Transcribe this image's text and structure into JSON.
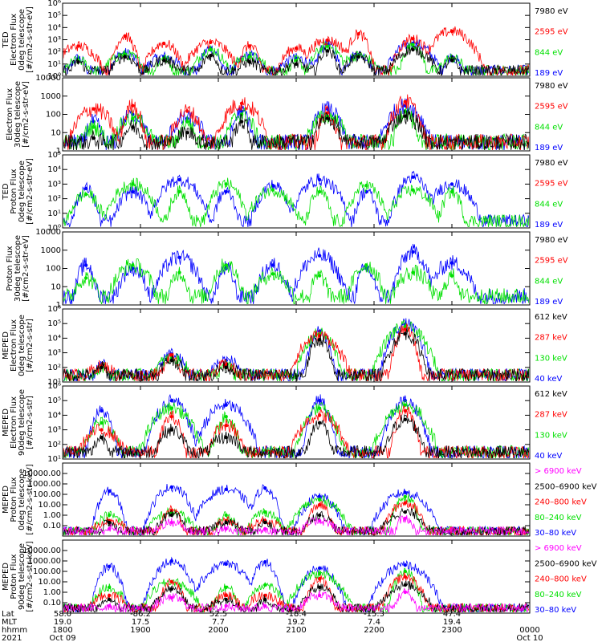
{
  "palette": {
    "black": "#000000",
    "red": "#ff0000",
    "green": "#00e000",
    "blue": "#0000ff",
    "magenta": "#ff00ff"
  },
  "chart_data": [
    {
      "type": "line",
      "panel": "TED electron flux 0deg",
      "ylabel_lines": [
        "TED",
        "Electron Flux",
        "0deg telescope",
        "[#/cm2-s-str-eV]"
      ],
      "yscale": "log",
      "ylim": [
        1,
        1000000
      ],
      "yticks": [
        "10⁰",
        "10¹",
        "10²",
        "10³",
        "10⁴",
        "10⁵",
        "10⁶"
      ],
      "legend": [
        {
          "label": "7980 eV",
          "color": "black"
        },
        {
          "label": "2595 eV",
          "color": "red"
        },
        {
          "label": "844 eV",
          "color": "green"
        },
        {
          "label": "189 eV",
          "color": "blue"
        }
      ],
      "series": [
        {
          "name": "189 eV",
          "color": "blue",
          "x": [
            0.2,
            0.8,
            1.3,
            1.9,
            2.4,
            3.0,
            3.4,
            3.8,
            4.5,
            5.0
          ],
          "y": [
            30,
            80,
            40,
            200,
            50,
            30,
            400,
            60,
            500,
            40
          ]
        },
        {
          "name": "844 eV",
          "color": "green",
          "x": [
            0.2,
            0.8,
            1.3,
            1.9,
            2.4,
            3.0,
            3.4,
            3.8,
            4.5,
            5.0
          ],
          "y": [
            20,
            60,
            30,
            150,
            40,
            20,
            300,
            50,
            400,
            30
          ]
        },
        {
          "name": "2595 eV",
          "color": "red",
          "x": [
            0.2,
            0.8,
            1.3,
            1.9,
            2.4,
            3.0,
            3.4,
            3.8,
            4.5,
            5.0
          ],
          "y": [
            300,
            2000,
            500,
            600,
            300,
            200,
            900,
            3000,
            1200,
            5000
          ]
        },
        {
          "name": "7980 eV",
          "color": "black",
          "x": [
            0.2,
            0.8,
            1.3,
            1.9,
            2.4,
            3.0,
            3.4,
            3.8,
            4.5,
            5.0
          ],
          "y": [
            15,
            40,
            20,
            50,
            15,
            10,
            120,
            40,
            150,
            20
          ]
        }
      ]
    },
    {
      "type": "line",
      "panel": "TED electron flux 30deg",
      "ylabel_lines": [
        "Electron Flux",
        "30deg telescope",
        "[#/cm2-s-str-eV]"
      ],
      "yscale": "log",
      "ylim": [
        1,
        10000
      ],
      "yticks": [
        "1",
        "10",
        "100",
        "1000",
        "10000"
      ],
      "legend": [
        {
          "label": "7980 eV",
          "color": "black"
        },
        {
          "label": "2595 eV",
          "color": "red"
        },
        {
          "label": "844 eV",
          "color": "green"
        },
        {
          "label": "189 eV",
          "color": "blue"
        }
      ],
      "series": [
        {
          "name": "189 eV",
          "color": "blue",
          "x": [
            0.4,
            0.9,
            1.6,
            2.3,
            3.4,
            4.4
          ],
          "y": [
            40,
            100,
            60,
            150,
            200,
            300
          ]
        },
        {
          "name": "844 eV",
          "color": "green",
          "x": [
            0.4,
            0.9,
            1.6,
            2.3,
            3.4,
            4.4
          ],
          "y": [
            20,
            60,
            40,
            100,
            80,
            150
          ]
        },
        {
          "name": "2595 eV",
          "color": "red",
          "x": [
            0.4,
            0.9,
            1.6,
            2.3,
            3.4,
            4.4
          ],
          "y": [
            200,
            300,
            150,
            400,
            120,
            500
          ]
        },
        {
          "name": "7980 eV",
          "color": "black",
          "x": [
            0.4,
            0.9,
            1.6,
            2.3,
            3.4,
            4.4
          ],
          "y": [
            5,
            20,
            10,
            40,
            60,
            80
          ]
        }
      ]
    },
    {
      "type": "line",
      "panel": "TED proton flux 0deg",
      "ylabel_lines": [
        "TED",
        "Proton Flux",
        "0deg telescope",
        "[#/cm2-s-str-eV]"
      ],
      "yscale": "log",
      "ylim": [
        1,
        100000
      ],
      "yticks": [
        "10⁰",
        "10¹",
        "10²",
        "10³",
        "10⁴",
        "10⁵"
      ],
      "legend": [
        {
          "label": "7980 eV",
          "color": "black"
        },
        {
          "label": "2595 eV",
          "color": "red"
        },
        {
          "label": "844 eV",
          "color": "green"
        },
        {
          "label": "189 eV",
          "color": "blue"
        }
      ],
      "series": [
        {
          "name": "189 eV",
          "color": "blue",
          "x": [
            0.3,
            0.9,
            1.5,
            2.1,
            2.7,
            3.3,
            3.9,
            4.5,
            5.0
          ],
          "y": [
            500,
            300,
            2000,
            300,
            800,
            2000,
            300,
            3000,
            1000
          ]
        },
        {
          "name": "844 eV",
          "color": "green",
          "x": [
            0.3,
            0.9,
            1.5,
            2.1,
            2.7,
            3.3,
            3.9,
            4.5,
            5.0
          ],
          "y": [
            200,
            1000,
            300,
            1000,
            400,
            300,
            800,
            400,
            300
          ]
        }
      ]
    },
    {
      "type": "line",
      "panel": "TED proton flux 30deg",
      "ylabel_lines": [
        "Proton Flux",
        "30deg telescope",
        "[#/cm2-s-str-eV]"
      ],
      "yscale": "log",
      "ylim": [
        1,
        10000
      ],
      "yticks": [
        "1",
        "10",
        "100",
        "1000",
        "10000"
      ],
      "legend": [
        {
          "label": "7980 eV",
          "color": "black"
        },
        {
          "label": "2595 eV",
          "color": "red"
        },
        {
          "label": "844 eV",
          "color": "green"
        },
        {
          "label": "189 eV",
          "color": "blue"
        }
      ],
      "series": [
        {
          "name": "189 eV",
          "color": "blue",
          "x": [
            0.3,
            0.9,
            1.5,
            2.1,
            2.7,
            3.3,
            3.9,
            4.5,
            5.0
          ],
          "y": [
            150,
            100,
            400,
            100,
            150,
            500,
            100,
            800,
            200
          ]
        },
        {
          "name": "844 eV",
          "color": "green",
          "x": [
            0.3,
            0.9,
            1.5,
            2.1,
            2.7,
            3.3,
            3.9,
            4.5,
            5.0
          ],
          "y": [
            30,
            150,
            60,
            150,
            50,
            40,
            150,
            60,
            40
          ]
        }
      ]
    },
    {
      "type": "line",
      "panel": "MEPED electron flux 0deg",
      "ylabel_lines": [
        "MEPED",
        "Electron Flux",
        "0deg telescope",
        "[#/cm2-s-str]"
      ],
      "yscale": "log",
      "ylim": [
        10,
        1000000
      ],
      "yticks": [
        "10¹",
        "10²",
        "10³",
        "10⁴",
        "10⁵",
        "10⁶"
      ],
      "legend": [
        {
          "label": "612 keV",
          "color": "black"
        },
        {
          "label": "287 keV",
          "color": "red"
        },
        {
          "label": "130 keV",
          "color": "green"
        },
        {
          "label": "40 keV",
          "color": "blue"
        }
      ],
      "series": [
        {
          "name": "40 keV",
          "color": "blue",
          "x": [
            0.5,
            1.4,
            2.1,
            3.3,
            4.4
          ],
          "y": [
            150,
            800,
            300,
            30000,
            90000
          ]
        },
        {
          "name": "130 keV",
          "color": "green",
          "x": [
            0.5,
            1.4,
            2.1,
            3.3,
            4.4
          ],
          "y": [
            100,
            400,
            150,
            20000,
            60000
          ]
        },
        {
          "name": "287 keV",
          "color": "red",
          "x": [
            0.5,
            1.4,
            2.1,
            3.3,
            4.4
          ],
          "y": [
            120,
            700,
            150,
            15000,
            40000
          ]
        },
        {
          "name": "612 keV",
          "color": "black",
          "x": [
            0.5,
            1.4,
            2.1,
            3.3,
            4.4
          ],
          "y": [
            100,
            300,
            100,
            8000,
            20000
          ]
        }
      ]
    },
    {
      "type": "line",
      "panel": "MEPED electron flux 90deg",
      "ylabel_lines": [
        "MEPED",
        "Electron Flux",
        "90deg telescope",
        "[#/cm2-s-str]"
      ],
      "yscale": "log",
      "ylim": [
        10,
        1000000
      ],
      "yticks": [
        "10¹",
        "10²",
        "10³",
        "10⁴",
        "10⁵",
        "10⁶"
      ],
      "legend": [
        {
          "label": "612 keV",
          "color": "black"
        },
        {
          "label": "287 keV",
          "color": "red"
        },
        {
          "label": "130 keV",
          "color": "green"
        },
        {
          "label": "40 keV",
          "color": "blue"
        }
      ],
      "series": [
        {
          "name": "40 keV",
          "color": "blue",
          "x": [
            0.5,
            1.4,
            2.1,
            3.3,
            4.4
          ],
          "y": [
            20000,
            100000,
            50000,
            100000,
            100000
          ]
        },
        {
          "name": "130 keV",
          "color": "green",
          "x": [
            0.5,
            1.4,
            2.1,
            3.3,
            4.4
          ],
          "y": [
            3000,
            30000,
            8000,
            30000,
            50000
          ]
        },
        {
          "name": "287 keV",
          "color": "red",
          "x": [
            0.5,
            1.4,
            2.1,
            3.3,
            4.4
          ],
          "y": [
            1000,
            8000,
            2000,
            10000,
            20000
          ]
        },
        {
          "name": "612 keV",
          "color": "black",
          "x": [
            0.5,
            1.4,
            2.1,
            3.3,
            4.4
          ],
          "y": [
            300,
            1000,
            300,
            3000,
            5000
          ]
        }
      ]
    },
    {
      "type": "line",
      "panel": "MEPED proton flux 0deg",
      "ylabel_lines": [
        "MEPED",
        "Proton Flux",
        "0deg telescope",
        "[#/cm2-s-str-keV]"
      ],
      "yscale": "log",
      "ylim": [
        0.01,
        100000
      ],
      "yticks": [
        "0.10",
        "1.00",
        "10.00",
        "100.00",
        "1000.00",
        "10000.00"
      ],
      "legend": [
        {
          "label": "> 6900 keV",
          "color": "magenta"
        },
        {
          "label": "2500–6900 keV",
          "color": "black"
        },
        {
          "label": "240–800 keV",
          "color": "red"
        },
        {
          "label": "80–240 keV",
          "color": "green"
        },
        {
          "label": "30–80 keV",
          "color": "blue"
        }
      ],
      "series": [
        {
          "name": "30–80 keV",
          "color": "blue",
          "x": [
            0.6,
            1.4,
            2.1,
            2.6,
            3.3,
            4.4
          ],
          "y": [
            200,
            500,
            300,
            400,
            60,
            150
          ]
        },
        {
          "name": "80–240 keV",
          "color": "green",
          "x": [
            0.6,
            1.4,
            2.1,
            2.6,
            3.3,
            4.4
          ],
          "y": [
            1,
            2,
            1,
            2,
            30,
            60
          ]
        },
        {
          "name": "240–800 keV",
          "color": "red",
          "x": [
            0.6,
            1.4,
            2.1,
            2.6,
            3.3,
            4.4
          ],
          "y": [
            0.3,
            3,
            0.3,
            0.3,
            10,
            15
          ]
        },
        {
          "name": "2500–6900 keV",
          "color": "black",
          "x": [
            0.6,
            1.4,
            2.1,
            2.6,
            3.3,
            4.4
          ],
          "y": [
            0.2,
            1,
            0.2,
            0.2,
            1,
            2
          ]
        },
        {
          "name": "> 6900 keV",
          "color": "magenta",
          "x": [
            0.6,
            1.4,
            2.1,
            2.6,
            3.3,
            4.4
          ],
          "y": [
            0.05,
            0.2,
            0.05,
            0.05,
            0.3,
            0.5
          ]
        }
      ]
    },
    {
      "type": "line",
      "panel": "MEPED proton flux 90deg",
      "ylabel_lines": [
        "MEPED",
        "Proton Flux",
        "90deg telescope",
        "[#/cm2-s-str-keV]"
      ],
      "yscale": "log",
      "ylim": [
        0.01,
        100000
      ],
      "yticks": [
        "0.10",
        "1.00",
        "10.00",
        "100.00",
        "1000.00",
        "10000.00"
      ],
      "legend": [
        {
          "label": "> 6900 keV",
          "color": "magenta"
        },
        {
          "label": "2500–6900 keV",
          "color": "black"
        },
        {
          "label": "240–800 keV",
          "color": "red"
        },
        {
          "label": "80–240 keV",
          "color": "green"
        },
        {
          "label": "30–80 keV",
          "color": "blue"
        }
      ],
      "series": [
        {
          "name": "30–80 keV",
          "color": "blue",
          "x": [
            0.6,
            1.4,
            2.1,
            2.6,
            3.3,
            4.4
          ],
          "y": [
            300,
            1000,
            500,
            800,
            200,
            400
          ]
        },
        {
          "name": "80–240 keV",
          "color": "green",
          "x": [
            0.6,
            1.4,
            2.1,
            2.6,
            3.3,
            4.4
          ],
          "y": [
            3,
            10,
            3,
            5,
            60,
            100
          ]
        },
        {
          "name": "240–800 keV",
          "color": "red",
          "x": [
            0.6,
            1.4,
            2.1,
            2.6,
            3.3,
            4.4
          ],
          "y": [
            0.5,
            10,
            0.5,
            0.5,
            20,
            30
          ]
        },
        {
          "name": "2500–6900 keV",
          "color": "black",
          "x": [
            0.6,
            1.4,
            2.1,
            2.6,
            3.3,
            4.4
          ],
          "y": [
            0.2,
            2,
            0.2,
            0.2,
            3,
            5
          ]
        },
        {
          "name": "> 6900 keV",
          "color": "magenta",
          "x": [
            0.6,
            1.4,
            2.1,
            2.6,
            3.3,
            4.4
          ],
          "y": [
            0.05,
            0.3,
            0.05,
            0.05,
            0.5,
            1
          ]
        }
      ]
    }
  ],
  "x_axis": {
    "row_labels": [
      "Lat",
      "MLT",
      "hhmm",
      "2021"
    ],
    "ticks": [
      {
        "lat": "58.0",
        "mlt": "19.0",
        "hhmm": "1800",
        "date": "Oct 09"
      },
      {
        "lat": "-86.2",
        "mlt": "17.5",
        "hhmm": "1900",
        "date": ""
      },
      {
        "lat": "52.5",
        "mlt": "7.7",
        "hhmm": "2000",
        "date": ""
      },
      {
        "lat": "-18.4",
        "mlt": "19.2",
        "hhmm": "2100",
        "date": ""
      },
      {
        "lat": "-15.3",
        "mlt": "7.4",
        "hhmm": "2200",
        "date": ""
      },
      {
        "lat": "47.4",
        "mlt": "19.4",
        "hhmm": "2300",
        "date": ""
      },
      {
        "lat": "",
        "mlt": "",
        "hhmm": "0000",
        "date": "Oct 10"
      }
    ]
  }
}
